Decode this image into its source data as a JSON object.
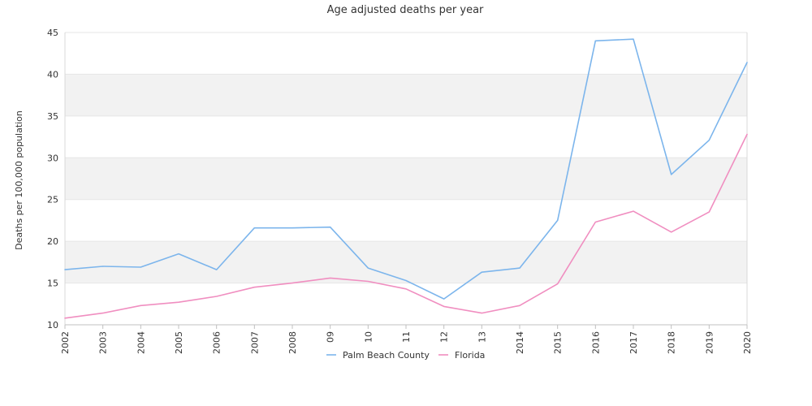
{
  "chart_data": {
    "type": "line",
    "title": "Age adjusted deaths per year",
    "xlabel": "",
    "ylabel": "Deaths per 100,000 population",
    "ylim": [
      10,
      45
    ],
    "yticks": [
      "10",
      "15",
      "20",
      "25",
      "30",
      "35",
      "40",
      "45"
    ],
    "categories": [
      "2002",
      "2003",
      "2004",
      "2005",
      "2006",
      "2007",
      "2008",
      "09",
      "10",
      "11",
      "12",
      "13",
      "2014",
      "2015",
      "2016",
      "2017",
      "2018",
      "2019",
      "2020"
    ],
    "grid": "alternating horizontal bands",
    "legend": "bottom-center",
    "series": [
      {
        "name": "Palm Beach County",
        "color": "#7cb5ec",
        "values": [
          16.6,
          17.0,
          16.9,
          18.5,
          16.6,
          21.6,
          21.6,
          21.7,
          16.8,
          15.3,
          13.1,
          16.3,
          16.8,
          22.5,
          44.0,
          44.2,
          28.0,
          32.1,
          41.4
        ]
      },
      {
        "name": "Florida",
        "color": "#f08ec0",
        "values": [
          10.8,
          11.4,
          12.3,
          12.7,
          13.4,
          14.5,
          15.0,
          15.6,
          15.2,
          14.3,
          12.2,
          11.4,
          12.3,
          14.9,
          22.3,
          23.6,
          21.1,
          23.5,
          32.8
        ]
      }
    ]
  }
}
